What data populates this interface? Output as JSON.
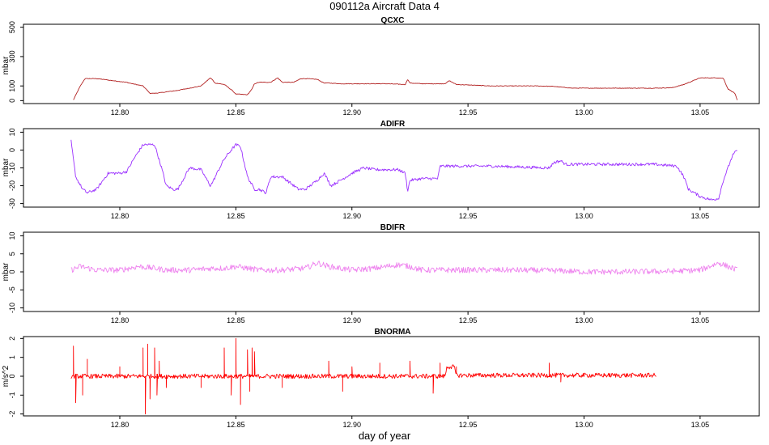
{
  "page": {
    "title": "090112a   Aircraft Data 4",
    "xlabel": "day of year"
  },
  "x_ticks": [
    "12.80",
    "12.85",
    "12.90",
    "12.95",
    "13.00",
    "13.05"
  ],
  "chart_data": [
    {
      "type": "line",
      "title": "QCXC",
      "ylabel": "mbar",
      "color": "#b22222",
      "xlim": [
        12.7585,
        13.0755
      ],
      "ylim": [
        -20,
        520
      ],
      "y_ticks": [
        "0",
        "100",
        "300",
        "500"
      ],
      "y_tick_values": [
        0,
        100,
        300,
        500
      ],
      "noise": 2,
      "x": [
        12.78,
        12.783,
        12.785,
        12.79,
        12.8,
        12.803,
        12.804,
        12.81,
        12.813,
        12.815,
        12.818,
        12.825,
        12.835,
        12.839,
        12.84,
        12.841,
        12.845,
        12.848,
        12.85,
        12.855,
        12.857,
        12.858,
        12.86,
        12.865,
        12.868,
        12.87,
        12.875,
        12.878,
        12.88,
        12.885,
        12.888,
        12.89,
        12.895,
        12.905,
        12.915,
        12.923,
        12.924,
        12.925,
        12.93,
        12.94,
        12.942,
        12.945,
        12.96,
        12.98,
        12.987,
        12.99,
        12.995,
        13.01,
        13.03,
        13.038,
        13.043,
        13.05,
        13.058,
        13.06,
        13.062,
        13.065,
        13.066
      ],
      "y": [
        5,
        100,
        150,
        150,
        130,
        125,
        120,
        100,
        50,
        50,
        55,
        70,
        100,
        155,
        140,
        120,
        110,
        75,
        45,
        40,
        80,
        115,
        125,
        125,
        155,
        125,
        125,
        150,
        150,
        145,
        120,
        120,
        115,
        115,
        115,
        110,
        145,
        120,
        115,
        115,
        135,
        110,
        100,
        100,
        97,
        92,
        85,
        85,
        85,
        88,
        110,
        155,
        155,
        152,
        80,
        50,
        2
      ]
    },
    {
      "type": "line",
      "title": "ADIFR",
      "ylabel": "mbar",
      "color": "#9b30ff",
      "xlim": [
        12.7585,
        13.0755
      ],
      "ylim": [
        -32,
        12
      ],
      "y_ticks": [
        "-30",
        "-20",
        "-10",
        "0",
        "10"
      ],
      "y_tick_values": [
        -30,
        -20,
        -10,
        0,
        10
      ],
      "noise": 0.8,
      "x": [
        12.779,
        12.78,
        12.781,
        12.784,
        12.786,
        12.79,
        12.795,
        12.8,
        12.803,
        12.806,
        12.81,
        12.815,
        12.818,
        12.82,
        12.823,
        12.825,
        12.83,
        12.835,
        12.839,
        12.84,
        12.843,
        12.845,
        12.848,
        12.85,
        12.852,
        12.855,
        12.858,
        12.86,
        12.863,
        12.865,
        12.87,
        12.875,
        12.877,
        12.88,
        12.885,
        12.888,
        12.891,
        12.895,
        12.9,
        12.905,
        12.91,
        12.92,
        12.923,
        12.924,
        12.925,
        12.93,
        12.937,
        12.938,
        12.94,
        12.95,
        12.96,
        12.985,
        12.987,
        12.99,
        12.992,
        13.0,
        13.01,
        13.03,
        13.04,
        13.043,
        13.045,
        13.05,
        13.055,
        13.058,
        13.06,
        13.062,
        13.064,
        13.066
      ],
      "y": [
        5,
        -5,
        -15,
        -22,
        -24,
        -22,
        -13,
        -13,
        -12,
        -5,
        3,
        3,
        -10,
        -20,
        -22,
        -22,
        -10,
        -11,
        -20,
        -18,
        -10,
        -5,
        0,
        3,
        2,
        -15,
        -22,
        -22,
        -24,
        -15,
        -15,
        -20,
        -22,
        -22,
        -17,
        -13,
        -20,
        -17,
        -13,
        -10,
        -11,
        -11,
        -13,
        -23,
        -17,
        -16,
        -16,
        -9,
        -9,
        -9,
        -9,
        -10,
        -7,
        -6,
        -8,
        -8,
        -8,
        -8,
        -9,
        -15,
        -22,
        -26,
        -28,
        -27,
        -17,
        -10,
        -3,
        0
      ]
    },
    {
      "type": "line",
      "title": "BDIFR",
      "ylabel": "mbar",
      "color": "#ee82ee",
      "xlim": [
        12.7585,
        13.0755
      ],
      "ylim": [
        -11,
        11
      ],
      "y_ticks": [
        "-10",
        "-5",
        "0",
        "5",
        "10"
      ],
      "y_tick_values": [
        -10,
        -5,
        0,
        5,
        10
      ],
      "noise": 0.8,
      "x": [
        12.779,
        12.783,
        12.79,
        12.8,
        12.808,
        12.815,
        12.82,
        12.83,
        12.84,
        12.845,
        12.85,
        12.855,
        12.86,
        12.87,
        12.88,
        12.885,
        12.89,
        12.9,
        12.91,
        12.92,
        12.925,
        12.93,
        12.94,
        12.95,
        12.97,
        12.99,
        13.0,
        13.02,
        13.04,
        13.05,
        13.058,
        13.062,
        13.066
      ],
      "y": [
        0.5,
        1.5,
        0.5,
        0.5,
        1.5,
        1.0,
        0.5,
        0.5,
        1.0,
        1.0,
        1.5,
        1.0,
        0.5,
        0.5,
        1.0,
        2.5,
        1.5,
        0.5,
        1.0,
        2.0,
        1.5,
        0.5,
        0.5,
        0.5,
        0.5,
        0.3,
        0.0,
        0.0,
        0.2,
        0.5,
        2.5,
        1.5,
        0.5
      ]
    },
    {
      "type": "line",
      "title": "BNORMA",
      "ylabel": "m/s^2",
      "color": "#ff0000",
      "xlim": [
        12.7585,
        13.0755
      ],
      "ylim": [
        -2.1,
        2.1
      ],
      "y_ticks": [
        "-2",
        "-1",
        "0",
        "1",
        "2"
      ],
      "y_tick_values": [
        -2,
        -1,
        0,
        1,
        2
      ],
      "noise": 0.12,
      "x": [
        12.779,
        12.8,
        12.84,
        12.94,
        12.941,
        12.944,
        12.945,
        13.031
      ],
      "y": [
        0,
        0,
        0,
        0,
        0.5,
        0.5,
        0.05,
        0.05
      ],
      "spikes": [
        [
          12.78,
          1.6
        ],
        [
          12.781,
          -1.4
        ],
        [
          12.784,
          -1.0
        ],
        [
          12.786,
          0.9
        ],
        [
          12.8,
          0.5
        ],
        [
          12.81,
          1.5
        ],
        [
          12.811,
          -2.0
        ],
        [
          12.812,
          1.7
        ],
        [
          12.813,
          -1.2
        ],
        [
          12.815,
          1.5
        ],
        [
          12.816,
          -1.0
        ],
        [
          12.817,
          0.8
        ],
        [
          12.82,
          -0.6
        ],
        [
          12.835,
          -0.6
        ],
        [
          12.845,
          1.5
        ],
        [
          12.848,
          -1.0
        ],
        [
          12.85,
          2.0
        ],
        [
          12.852,
          -1.5
        ],
        [
          12.855,
          1.4
        ],
        [
          12.856,
          -0.8
        ],
        [
          12.857,
          1.5
        ],
        [
          12.858,
          1.3
        ],
        [
          12.87,
          -0.6
        ],
        [
          12.89,
          0.8
        ],
        [
          12.896,
          -0.8
        ],
        [
          12.9,
          0.5
        ],
        [
          12.912,
          0.7
        ],
        [
          12.925,
          0.8
        ],
        [
          12.935,
          -0.9
        ],
        [
          12.938,
          0.7
        ],
        [
          12.945,
          0.5
        ],
        [
          12.985,
          0.7
        ],
        [
          12.99,
          -0.3
        ]
      ]
    }
  ]
}
